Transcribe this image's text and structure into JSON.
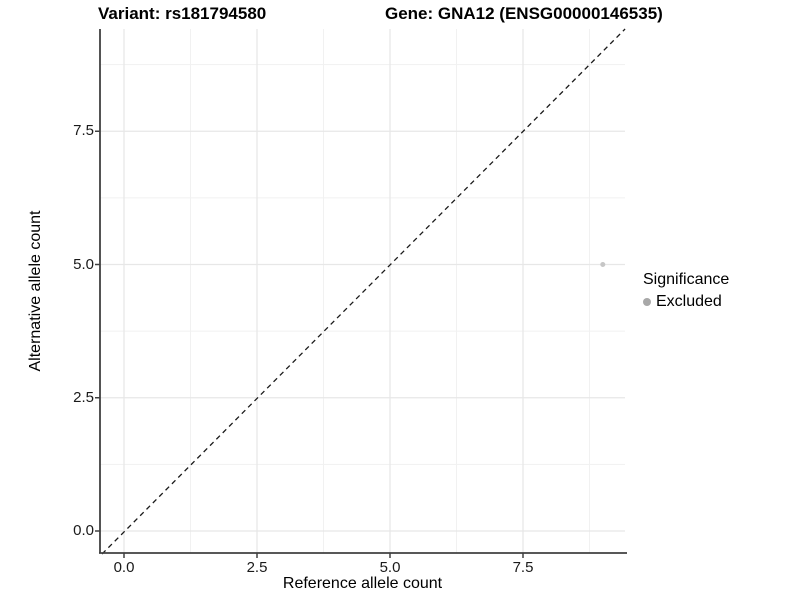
{
  "header": {
    "variant_title": "Variant: rs181794580",
    "gene_title": "Gene: GNA12 (ENSG00000146535)"
  },
  "x_axis": {
    "label": "Reference allele count",
    "ticks": [
      "0.0",
      "2.5",
      "5.0",
      "7.5"
    ]
  },
  "y_axis": {
    "label": "Alternative allele count",
    "ticks": [
      "0.0",
      "2.5",
      "5.0",
      "7.5"
    ]
  },
  "legend": {
    "title": "Significance",
    "items": [
      {
        "label": "Excluded",
        "color": "#a8a8a8"
      }
    ]
  },
  "chart_data": {
    "type": "scatter",
    "title": "Variant: rs181794580   Gene: GNA12 (ENSG00000146535)",
    "xlabel": "Reference allele count",
    "ylabel": "Alternative allele count",
    "xlim": [
      -0.45,
      9.45
    ],
    "ylim": [
      -0.45,
      9.45
    ],
    "x_ticks": [
      0,
      2.5,
      5,
      7.5
    ],
    "y_ticks": [
      0,
      2.5,
      5,
      7.5
    ],
    "grid": true,
    "legend_position": "right",
    "series": [
      {
        "name": "Excluded",
        "color": "#c6c6c6",
        "points": [
          {
            "x": 9,
            "y": 5
          }
        ]
      }
    ],
    "reference_line": {
      "type": "abline",
      "slope": 1,
      "intercept": 0,
      "style": "dashed",
      "color": "#1a1a1a"
    },
    "colors": {
      "major_grid": "#e7e7e7",
      "minor_grid": "#f1f1f1",
      "axis_line": "#404040",
      "point": "#c6c6c6",
      "legend_key": "#a8a8a8"
    }
  }
}
